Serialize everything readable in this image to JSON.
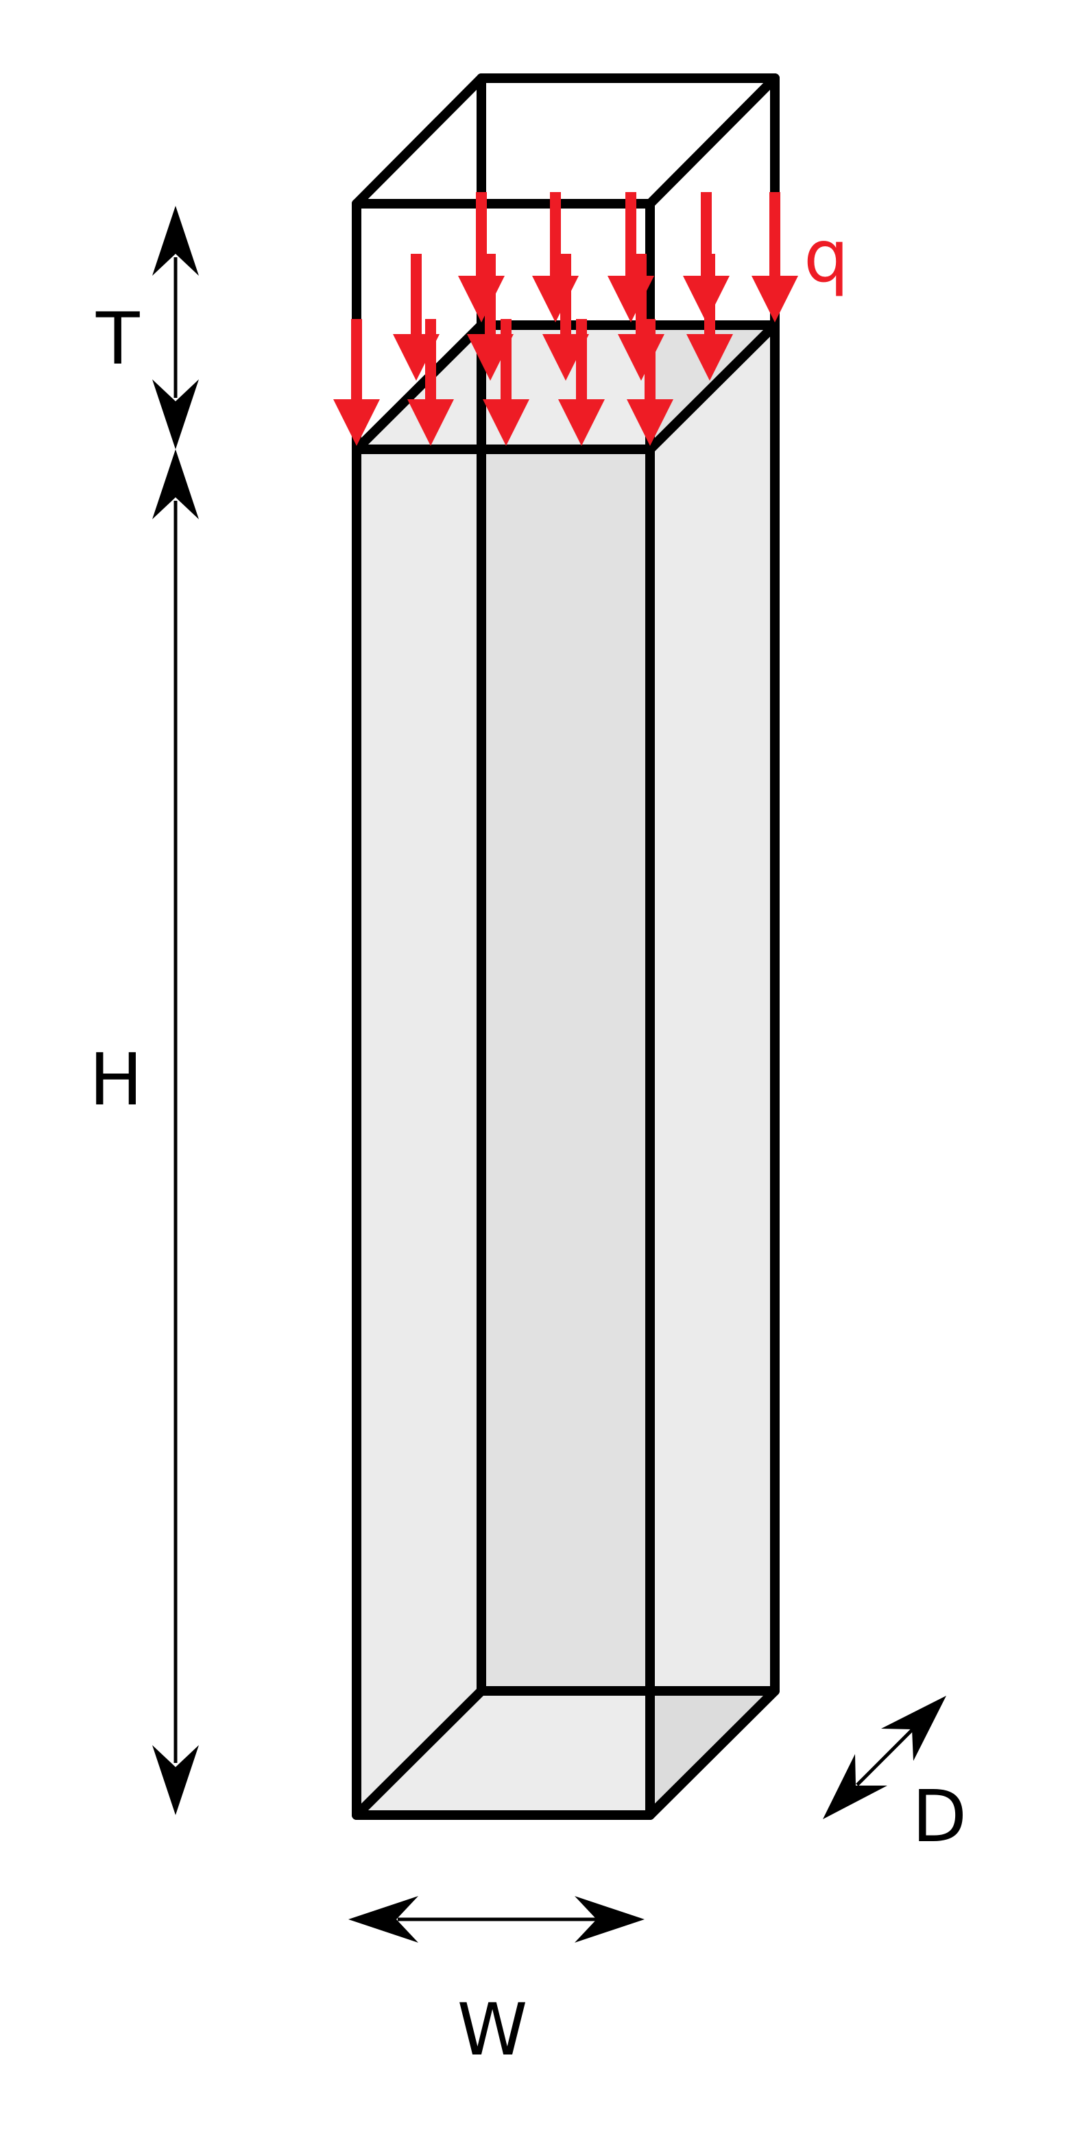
{
  "labels": {
    "load": "q",
    "top_thickness": "T",
    "height": "H",
    "width": "W",
    "depth": "D"
  },
  "colors": {
    "load": "#ee1c25",
    "outline": "#000000",
    "face_left": "#ebebeb",
    "face_back": "#e1e1e1",
    "face_right": "#ebebeb",
    "face_bottom": "#ececec",
    "face_bottom_right": "#dcdcdc",
    "face_top_band": "#ececec"
  }
}
